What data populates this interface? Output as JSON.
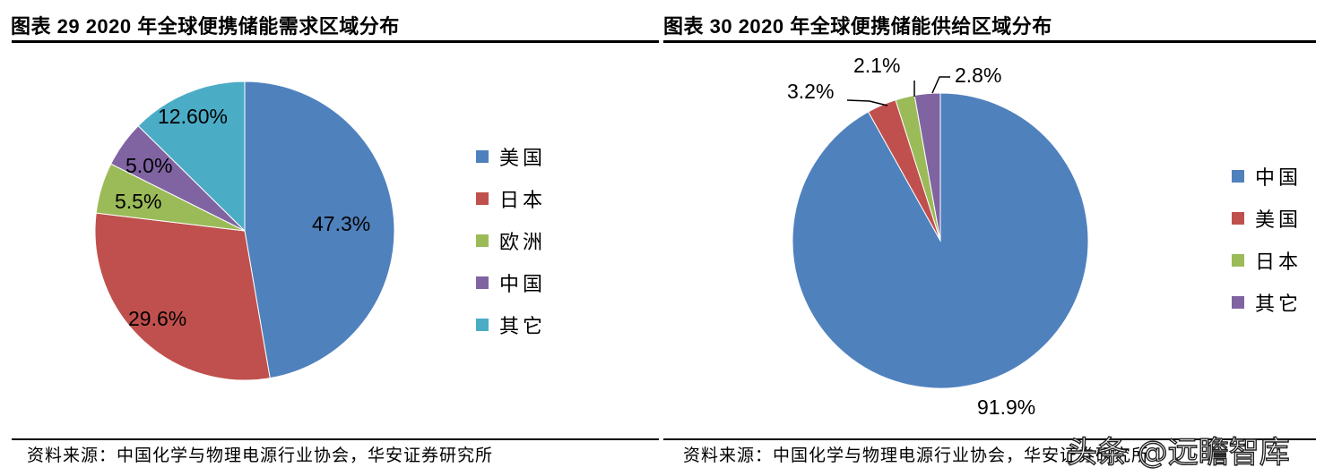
{
  "left": {
    "title": "图表 29  2020 年全球便携储能需求区域分布",
    "source": "资料来源：中国化学与物理电源行业协会，华安证券研究所",
    "legend": [
      {
        "label": "美国",
        "color": "#4F81BD"
      },
      {
        "label": "日本",
        "color": "#C0504D"
      },
      {
        "label": "欧洲",
        "color": "#9BBB59"
      },
      {
        "label": "中国",
        "color": "#8064A2"
      },
      {
        "label": "其它",
        "color": "#4BACC6"
      }
    ],
    "labels": [
      "47.3%",
      "29.6%",
      "5.5%",
      "5.0%",
      "12.60%"
    ]
  },
  "right": {
    "title": "图表 30  2020 年全球便携储能供给区域分布",
    "source": "资料来源：中国化学与物理电源行业协会，华安证券研究所",
    "legend": [
      {
        "label": "中国",
        "color": "#4F81BD"
      },
      {
        "label": "美国",
        "color": "#C0504D"
      },
      {
        "label": "日本",
        "color": "#9BBB59"
      },
      {
        "label": "其它",
        "color": "#8064A2"
      }
    ],
    "labels": [
      "91.9%",
      "3.2%",
      "2.1%",
      "2.8%"
    ]
  },
  "watermark": "头条 @远瞻智库",
  "chart_data": [
    {
      "type": "pie",
      "title": "图表 29 2020 年全球便携储能需求区域分布",
      "categories": [
        "美国",
        "日本",
        "欧洲",
        "中国",
        "其它"
      ],
      "values": [
        47.3,
        29.6,
        5.5,
        5.0,
        12.6
      ],
      "value_labels": [
        "47.3%",
        "29.6%",
        "5.5%",
        "5.0%",
        "12.60%"
      ],
      "colors": [
        "#4F81BD",
        "#C0504D",
        "#9BBB59",
        "#8064A2",
        "#4BACC6"
      ],
      "legend_position": "right",
      "start_angle": "12 o'clock, clockwise"
    },
    {
      "type": "pie",
      "title": "图表 30 2020 年全球便携储能供给区域分布",
      "categories": [
        "中国",
        "美国",
        "日本",
        "其它"
      ],
      "values": [
        91.9,
        3.2,
        2.1,
        2.8
      ],
      "value_labels": [
        "91.9%",
        "3.2%",
        "2.1%",
        "2.8%"
      ],
      "colors": [
        "#4F81BD",
        "#C0504D",
        "#9BBB59",
        "#8064A2"
      ],
      "legend_position": "right",
      "start_angle": "12 o'clock, clockwise"
    }
  ]
}
